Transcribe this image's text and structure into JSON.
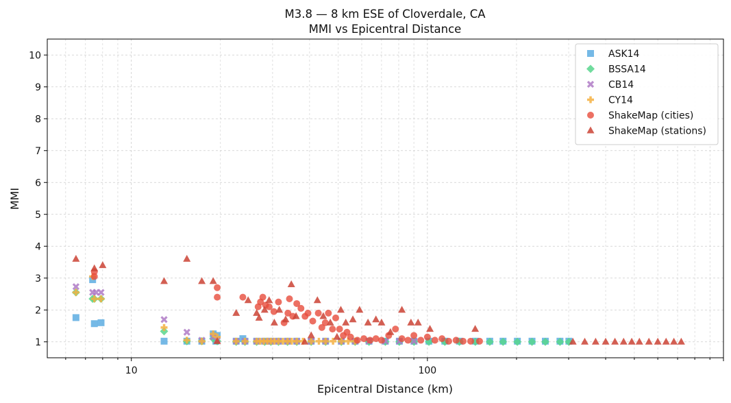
{
  "chart_data": {
    "type": "scatter",
    "title": "M3.8 — 8 km ESE of Cloverdale, CA",
    "subtitle": "MMI vs Epicentral Distance",
    "xlabel": "Epicentral Distance (km)",
    "ylabel": "MMI",
    "xscale": "log",
    "xlim": [
      5.2,
      1000
    ],
    "ylim": [
      0.5,
      10.5
    ],
    "x_major_ticks": [
      10,
      100
    ],
    "x_tick_labels": [
      "10",
      "100"
    ],
    "y_ticks": [
      1,
      2,
      3,
      4,
      5,
      6,
      7,
      8,
      9,
      10
    ],
    "y_tick_labels": [
      "1",
      "2",
      "3",
      "4",
      "5",
      "6",
      "7",
      "8",
      "9",
      "10"
    ],
    "grid": true,
    "legend_position": "top-right",
    "series": [
      {
        "name": "ASK14",
        "marker": "square",
        "color": "#5DADE2",
        "x": [
          6.5,
          7.4,
          7.5,
          7.9,
          12.9,
          15.4,
          17.3,
          18.9,
          19.5,
          19.3,
          22.6,
          23.8,
          24.2,
          26.5,
          28.2,
          29.6,
          31.4,
          33.7,
          36.2,
          40.5,
          45.3,
          51.2,
          57.0,
          63.5,
          72.1,
          80.4,
          90.1,
          101.2,
          114.5,
          128.3,
          145.2,
          162.4,
          180.1,
          201.3,
          225.6,
          250.2,
          280.4,
          300.5
        ],
        "y": [
          1.76,
          2.95,
          1.57,
          1.6,
          1.02,
          1.02,
          1.02,
          1.25,
          1.2,
          1.02,
          1.02,
          1.1,
          1.02,
          1.02,
          1.02,
          1.02,
          1.02,
          1.02,
          1.02,
          1.02,
          1.02,
          1.02,
          1.02,
          1.02,
          1.02,
          1.02,
          1.02,
          1.02,
          1.02,
          1.02,
          1.02,
          1.02,
          1.02,
          1.02,
          1.02,
          1.02,
          1.02,
          1.02
        ]
      },
      {
        "name": "BSSA14",
        "marker": "diamond",
        "color": "#58D68D",
        "x": [
          6.5,
          7.4,
          7.5,
          7.9,
          12.9,
          15.4,
          17.3,
          18.9,
          19.5,
          22.6,
          24.2,
          26.5,
          28.2,
          29.6,
          31.4,
          33.7,
          36.2,
          40.5,
          45.3,
          51.2,
          57.0,
          63.5,
          72.1,
          80.4,
          90.1,
          101.2,
          114.5,
          128.3,
          145.2,
          162.4,
          180.1,
          201.3,
          225.6,
          250.2,
          280.4,
          300.5
        ],
        "y": [
          2.55,
          2.35,
          2.35,
          2.35,
          1.33,
          1.02,
          1.02,
          1.1,
          1.02,
          1.0,
          1.0,
          1.0,
          1.0,
          1.0,
          1.0,
          1.0,
          1.0,
          1.0,
          1.0,
          1.0,
          1.0,
          1.0,
          1.0,
          1.0,
          1.0,
          1.0,
          1.0,
          1.0,
          1.0,
          1.0,
          1.0,
          1.0,
          1.0,
          1.0,
          1.0,
          1.0
        ]
      },
      {
        "name": "CB14",
        "marker": "x",
        "color": "#AF7AC5",
        "x": [
          6.5,
          7.4,
          7.6,
          7.9,
          12.9,
          15.4,
          17.3,
          18.9,
          19.5,
          22.6,
          24.2,
          26.5,
          28.2,
          29.6,
          31.4,
          33.7,
          36.2,
          40.5,
          45.3,
          51.2,
          57.0,
          63.5,
          72.1,
          80.4,
          90.1
        ],
        "y": [
          2.73,
          2.55,
          2.55,
          2.55,
          1.7,
          1.3,
          1.05,
          1.15,
          1.05,
          1.02,
          1.02,
          1.02,
          1.02,
          1.02,
          1.02,
          1.02,
          1.02,
          1.02,
          1.02,
          1.02,
          1.02,
          1.02,
          1.02,
          1.02,
          1.02
        ]
      },
      {
        "name": "CY14",
        "marker": "plus",
        "color": "#F5B041",
        "x": [
          6.5,
          7.4,
          7.5,
          7.9,
          12.9,
          15.4,
          17.3,
          18.9,
          19.5,
          22.6,
          24.2,
          26.5,
          27.2,
          28.0,
          28.8,
          29.6,
          30.4,
          31.4,
          32.5,
          33.7,
          34.8,
          36.2,
          38.0,
          40.5,
          43.0,
          45.3,
          48.0,
          51.2,
          54.0,
          57.0
        ],
        "y": [
          2.55,
          3.05,
          2.35,
          2.35,
          1.45,
          1.05,
          1.02,
          1.25,
          1.15,
          1.02,
          1.02,
          1.02,
          1.02,
          1.02,
          1.02,
          1.02,
          1.02,
          1.02,
          1.02,
          1.02,
          1.02,
          1.02,
          1.02,
          1.02,
          1.02,
          1.02,
          1.02,
          1.02,
          1.02,
          1.02
        ]
      },
      {
        "name": "ShakeMap (cities)",
        "marker": "circle",
        "color": "#E74C3C",
        "x": [
          7.5,
          7.5,
          19.5,
          19.5,
          23.8,
          26.8,
          27.3,
          27.8,
          28.4,
          29.2,
          30.3,
          31.4,
          32.8,
          33.8,
          34.2,
          35.1,
          36.2,
          37.4,
          38.6,
          39.5,
          41.0,
          42.8,
          44.0,
          45.2,
          46.3,
          47.8,
          49.0,
          50.5,
          52.0,
          53.5,
          55.0,
          58.0,
          61.0,
          64.0,
          67.0,
          70.0,
          74.0,
          78.0,
          82.0,
          86.0,
          90.0,
          95.0,
          100.0,
          106.0,
          112.0,
          118.0,
          125.0,
          132.0,
          140.0,
          150.0
        ],
        "y": [
          3.2,
          3.05,
          2.7,
          2.4,
          2.4,
          2.1,
          2.25,
          2.4,
          2.15,
          2.1,
          1.95,
          2.25,
          1.6,
          1.9,
          2.35,
          1.8,
          2.2,
          2.05,
          1.8,
          1.9,
          1.65,
          1.9,
          1.45,
          1.6,
          1.9,
          1.4,
          1.75,
          1.4,
          1.2,
          1.3,
          1.15,
          1.05,
          1.1,
          1.05,
          1.1,
          1.05,
          1.2,
          1.4,
          1.1,
          1.05,
          1.2,
          1.05,
          1.15,
          1.05,
          1.1,
          1.02,
          1.05,
          1.02,
          1.02,
          1.02
        ]
      },
      {
        "name": "ShakeMap (stations)",
        "marker": "triangle",
        "color": "#CB4335",
        "x": [
          6.5,
          7.5,
          8.0,
          12.9,
          15.4,
          17.3,
          18.9,
          19.5,
          22.6,
          24.8,
          26.5,
          27.0,
          28.2,
          29.2,
          30.4,
          31.6,
          33.2,
          34.7,
          36.0,
          38.5,
          40.5,
          42.5,
          44.5,
          47.0,
          49.5,
          51.0,
          53.0,
          56.0,
          59.0,
          63.0,
          67.0,
          70.0,
          75.0,
          82.0,
          88.0,
          93.0,
          102.0,
          145.0,
          310.0,
          340.0,
          370.0,
          400.0,
          430.0,
          460.0,
          490.0,
          520.0,
          560.0,
          600.0,
          640.0,
          680.0,
          720.0
        ],
        "y": [
          3.6,
          3.3,
          3.4,
          2.9,
          3.6,
          2.9,
          2.9,
          1.02,
          1.9,
          2.3,
          1.9,
          1.75,
          2.0,
          2.3,
          1.6,
          2.0,
          1.7,
          2.8,
          1.8,
          1.0,
          1.2,
          2.3,
          1.8,
          1.6,
          1.15,
          2.0,
          1.6,
          1.7,
          2.0,
          1.6,
          1.7,
          1.6,
          1.3,
          2.0,
          1.6,
          1.6,
          1.4,
          1.4,
          1.0,
          1.0,
          1.0,
          1.0,
          1.0,
          1.0,
          1.0,
          1.0,
          1.0,
          1.0,
          1.0,
          1.0,
          1.0
        ]
      }
    ]
  }
}
